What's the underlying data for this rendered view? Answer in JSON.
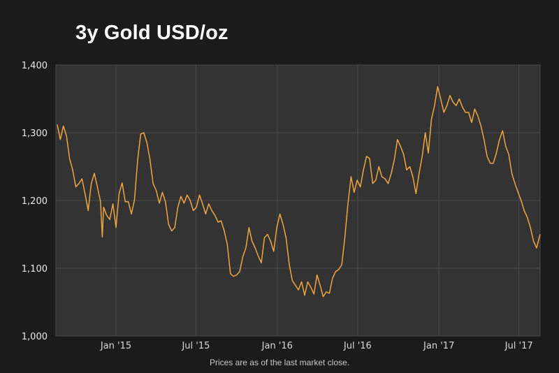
{
  "title": "3y Gold USD/oz",
  "footnote": "Prices are as of the last market close.",
  "colors": {
    "background": "#1b1b1b",
    "plot_background": "#333333",
    "gridline": "#4a4a4a",
    "series": "#f0a640"
  },
  "chart_data": {
    "type": "line",
    "title": "3y Gold USD/oz",
    "xlabel": "",
    "ylabel": "",
    "ylim": [
      1000,
      1400
    ],
    "xlim": [
      "2014-08-18",
      "2017-08-18"
    ],
    "grid": true,
    "legend": "none",
    "yticks": [
      {
        "value": 1000,
        "label": "1,000"
      },
      {
        "value": 1100,
        "label": "1,100"
      },
      {
        "value": 1200,
        "label": "1,200"
      },
      {
        "value": 1300,
        "label": "1,300"
      },
      {
        "value": 1400,
        "label": "1,400"
      }
    ],
    "xticks": [
      {
        "date": "2015-01-01",
        "label": "Jan '15"
      },
      {
        "date": "2015-07-01",
        "label": "Jul '15"
      },
      {
        "date": "2016-01-01",
        "label": "Jan '16"
      },
      {
        "date": "2016-07-01",
        "label": "Jul '16"
      },
      {
        "date": "2017-01-01",
        "label": "Jan '17"
      },
      {
        "date": "2017-07-01",
        "label": "Jul '17"
      }
    ],
    "series": [
      {
        "points": [
          [
            "2014-08-21",
            1312
          ],
          [
            "2014-08-28",
            1290
          ],
          [
            "2014-09-04",
            1310
          ],
          [
            "2014-09-11",
            1295
          ],
          [
            "2014-09-18",
            1262
          ],
          [
            "2014-09-25",
            1245
          ],
          [
            "2014-10-02",
            1220
          ],
          [
            "2014-10-09",
            1225
          ],
          [
            "2014-10-16",
            1232
          ],
          [
            "2014-10-23",
            1210
          ],
          [
            "2014-10-30",
            1185
          ],
          [
            "2014-11-06",
            1225
          ],
          [
            "2014-11-13",
            1240
          ],
          [
            "2014-11-20",
            1220
          ],
          [
            "2014-11-27",
            1198
          ],
          [
            "2014-12-01",
            1146
          ],
          [
            "2014-12-04",
            1190
          ],
          [
            "2014-12-11",
            1178
          ],
          [
            "2014-12-18",
            1172
          ],
          [
            "2014-12-25",
            1195
          ],
          [
            "2015-01-01",
            1160
          ],
          [
            "2015-01-08",
            1210
          ],
          [
            "2015-01-15",
            1226
          ],
          [
            "2015-01-22",
            1198
          ],
          [
            "2015-01-29",
            1198
          ],
          [
            "2015-02-05",
            1180
          ],
          [
            "2015-02-12",
            1201
          ],
          [
            "2015-02-19",
            1260
          ],
          [
            "2015-02-26",
            1298
          ],
          [
            "2015-03-05",
            1300
          ],
          [
            "2015-03-12",
            1285
          ],
          [
            "2015-03-19",
            1260
          ],
          [
            "2015-03-26",
            1225
          ],
          [
            "2015-04-02",
            1215
          ],
          [
            "2015-04-09",
            1196
          ],
          [
            "2015-04-16",
            1212
          ],
          [
            "2015-04-23",
            1198
          ],
          [
            "2015-04-30",
            1165
          ],
          [
            "2015-05-07",
            1155
          ],
          [
            "2015-05-14",
            1160
          ],
          [
            "2015-05-21",
            1190
          ],
          [
            "2015-05-28",
            1206
          ],
          [
            "2015-06-04",
            1196
          ],
          [
            "2015-06-11",
            1208
          ],
          [
            "2015-06-18",
            1200
          ],
          [
            "2015-06-25",
            1185
          ],
          [
            "2015-07-02",
            1190
          ],
          [
            "2015-07-09",
            1208
          ],
          [
            "2015-07-16",
            1195
          ],
          [
            "2015-07-23",
            1180
          ],
          [
            "2015-07-30",
            1195
          ],
          [
            "2015-08-06",
            1185
          ],
          [
            "2015-08-13",
            1178
          ],
          [
            "2015-08-20",
            1168
          ],
          [
            "2015-08-27",
            1170
          ],
          [
            "2015-09-03",
            1155
          ],
          [
            "2015-09-10",
            1135
          ],
          [
            "2015-09-17",
            1092
          ],
          [
            "2015-09-24",
            1088
          ],
          [
            "2015-10-01",
            1090
          ],
          [
            "2015-10-08",
            1095
          ],
          [
            "2015-10-15",
            1117
          ],
          [
            "2015-10-22",
            1130
          ],
          [
            "2015-10-29",
            1160
          ],
          [
            "2015-11-05",
            1140
          ],
          [
            "2015-11-12",
            1130
          ],
          [
            "2015-11-19",
            1118
          ],
          [
            "2015-11-26",
            1108
          ],
          [
            "2015-12-03",
            1145
          ],
          [
            "2015-12-10",
            1150
          ],
          [
            "2015-12-17",
            1140
          ],
          [
            "2015-12-24",
            1125
          ],
          [
            "2015-12-31",
            1160
          ],
          [
            "2016-01-07",
            1180
          ],
          [
            "2016-01-14",
            1165
          ],
          [
            "2016-01-21",
            1145
          ],
          [
            "2016-01-28",
            1106
          ],
          [
            "2016-02-04",
            1082
          ],
          [
            "2016-02-11",
            1075
          ],
          [
            "2016-02-18",
            1068
          ],
          [
            "2016-02-25",
            1080
          ],
          [
            "2016-03-03",
            1060
          ],
          [
            "2016-03-10",
            1080
          ],
          [
            "2016-03-17",
            1072
          ],
          [
            "2016-03-24",
            1062
          ],
          [
            "2016-03-31",
            1090
          ],
          [
            "2016-04-07",
            1075
          ],
          [
            "2016-04-14",
            1058
          ],
          [
            "2016-04-21",
            1065
          ],
          [
            "2016-04-28",
            1063
          ],
          [
            "2016-05-05",
            1085
          ],
          [
            "2016-05-12",
            1095
          ],
          [
            "2016-05-19",
            1098
          ],
          [
            "2016-05-26",
            1105
          ],
          [
            "2016-06-02",
            1145
          ],
          [
            "2016-06-09",
            1195
          ],
          [
            "2016-06-16",
            1235
          ],
          [
            "2016-06-23",
            1212
          ],
          [
            "2016-06-30",
            1230
          ],
          [
            "2016-07-07",
            1220
          ],
          [
            "2016-07-14",
            1245
          ],
          [
            "2016-07-21",
            1265
          ],
          [
            "2016-07-28",
            1262
          ],
          [
            "2016-08-04",
            1225
          ],
          [
            "2016-08-11",
            1230
          ],
          [
            "2016-08-18",
            1250
          ],
          [
            "2016-08-25",
            1235
          ],
          [
            "2016-09-01",
            1232
          ],
          [
            "2016-09-08",
            1225
          ],
          [
            "2016-09-15",
            1240
          ],
          [
            "2016-09-22",
            1260
          ],
          [
            "2016-09-29",
            1290
          ],
          [
            "2016-10-06",
            1280
          ],
          [
            "2016-10-13",
            1268
          ],
          [
            "2016-10-20",
            1245
          ],
          [
            "2016-10-27",
            1250
          ],
          [
            "2016-11-03",
            1235
          ],
          [
            "2016-11-10",
            1210
          ],
          [
            "2016-11-17",
            1240
          ],
          [
            "2016-11-24",
            1265
          ],
          [
            "2016-12-01",
            1300
          ],
          [
            "2016-12-08",
            1270
          ],
          [
            "2016-12-15",
            1320
          ],
          [
            "2016-12-22",
            1340
          ],
          [
            "2016-12-29",
            1368
          ],
          [
            "2017-01-05",
            1350
          ],
          [
            "2017-01-12",
            1330
          ],
          [
            "2017-01-19",
            1340
          ],
          [
            "2017-01-26",
            1355
          ],
          [
            "2017-02-02",
            1345
          ],
          [
            "2017-02-09",
            1340
          ],
          [
            "2017-02-16",
            1350
          ],
          [
            "2017-02-23",
            1338
          ],
          [
            "2017-03-02",
            1330
          ],
          [
            "2017-03-09",
            1330
          ],
          [
            "2017-03-16",
            1315
          ],
          [
            "2017-03-23",
            1335
          ],
          [
            "2017-03-30",
            1325
          ],
          [
            "2017-04-06",
            1310
          ],
          [
            "2017-04-13",
            1290
          ],
          [
            "2017-04-20",
            1265
          ],
          [
            "2017-04-27",
            1255
          ],
          [
            "2017-05-04",
            1255
          ],
          [
            "2017-05-11",
            1270
          ],
          [
            "2017-05-18",
            1290
          ],
          [
            "2017-05-25",
            1303
          ],
          [
            "2017-06-01",
            1280
          ],
          [
            "2017-06-08",
            1268
          ],
          [
            "2017-06-15",
            1240
          ],
          [
            "2017-06-22",
            1225
          ],
          [
            "2017-06-29",
            1212
          ],
          [
            "2017-07-06",
            1200
          ],
          [
            "2017-07-13",
            1185
          ],
          [
            "2017-07-20",
            1175
          ],
          [
            "2017-07-27",
            1160
          ],
          [
            "2017-08-03",
            1140
          ],
          [
            "2017-08-10",
            1130
          ],
          [
            "2017-08-18",
            1150
          ]
        ]
      }
    ]
  }
}
